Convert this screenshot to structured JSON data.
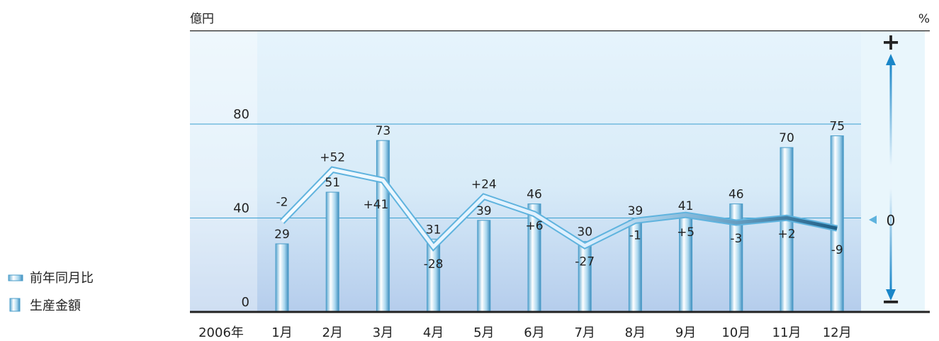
{
  "chart_data": {
    "type": "bar",
    "left_axis_unit": "億円",
    "right_axis_unit": "%",
    "year_label": "2006年",
    "categories": [
      "1月",
      "2月",
      "3月",
      "4月",
      "5月",
      "6月",
      "7月",
      "8月",
      "9月",
      "10月",
      "11月",
      "12月"
    ],
    "y_ticks": [
      0,
      40,
      80
    ],
    "ylim": [
      0,
      130
    ],
    "series": [
      {
        "name": "生産金額",
        "type": "bar",
        "values": [
          29,
          51,
          73,
          31,
          39,
          46,
          30,
          39,
          41,
          46,
          70,
          75
        ]
      },
      {
        "name": "前年同月比",
        "type": "line",
        "values": [
          -2,
          52,
          41,
          -28,
          24,
          6,
          -27,
          -1,
          5,
          -3,
          2,
          -9
        ],
        "labels": [
          "-2",
          "+52",
          "+41",
          "-28",
          "+24",
          "+6",
          "-27",
          "-1",
          "+5",
          "-3",
          "+2",
          "-9"
        ]
      }
    ],
    "right_axis": {
      "plus": "+",
      "zero": "0",
      "minus": "−"
    },
    "legend": {
      "position": "bottom-left",
      "entries": [
        "前年同月比",
        "生産金額"
      ]
    },
    "grid": true
  },
  "colors": {
    "plot_bg": "#e4f3fb",
    "bar_fill": "#a8d8ef",
    "bar_edge": "#4a9dc9",
    "line_outline": "#5fb3de",
    "line_fill": "#f4fbff",
    "line_dark": "#2e6f97",
    "axis": "#222222",
    "arrow": "#1a86c8"
  }
}
